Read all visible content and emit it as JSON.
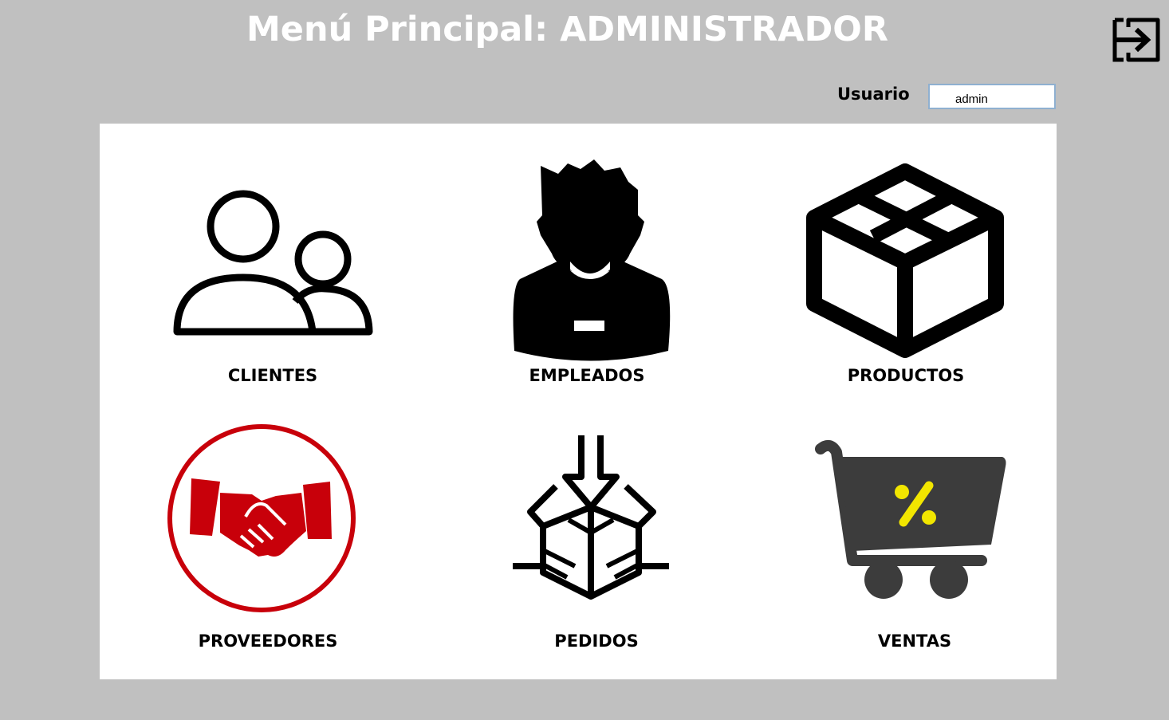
{
  "header": {
    "title": "Menú Principal: ADMINISTRADOR"
  },
  "user": {
    "label": "Usuario",
    "value": "admin"
  },
  "exit": {
    "icon": "exit-icon"
  },
  "menu": {
    "items": [
      {
        "label": "CLIENTES",
        "icon": "clients-icon"
      },
      {
        "label": "EMPLEADOS",
        "icon": "employee-icon"
      },
      {
        "label": "PRODUCTOS",
        "icon": "box-icon"
      },
      {
        "label": "PROVEEDORES",
        "icon": "handshake-icon",
        "color": "#c8000a"
      },
      {
        "label": "PEDIDOS",
        "icon": "package-in-icon"
      },
      {
        "label": "VENTAS",
        "icon": "cart-discount-icon",
        "color": "#f2e600"
      }
    ]
  }
}
